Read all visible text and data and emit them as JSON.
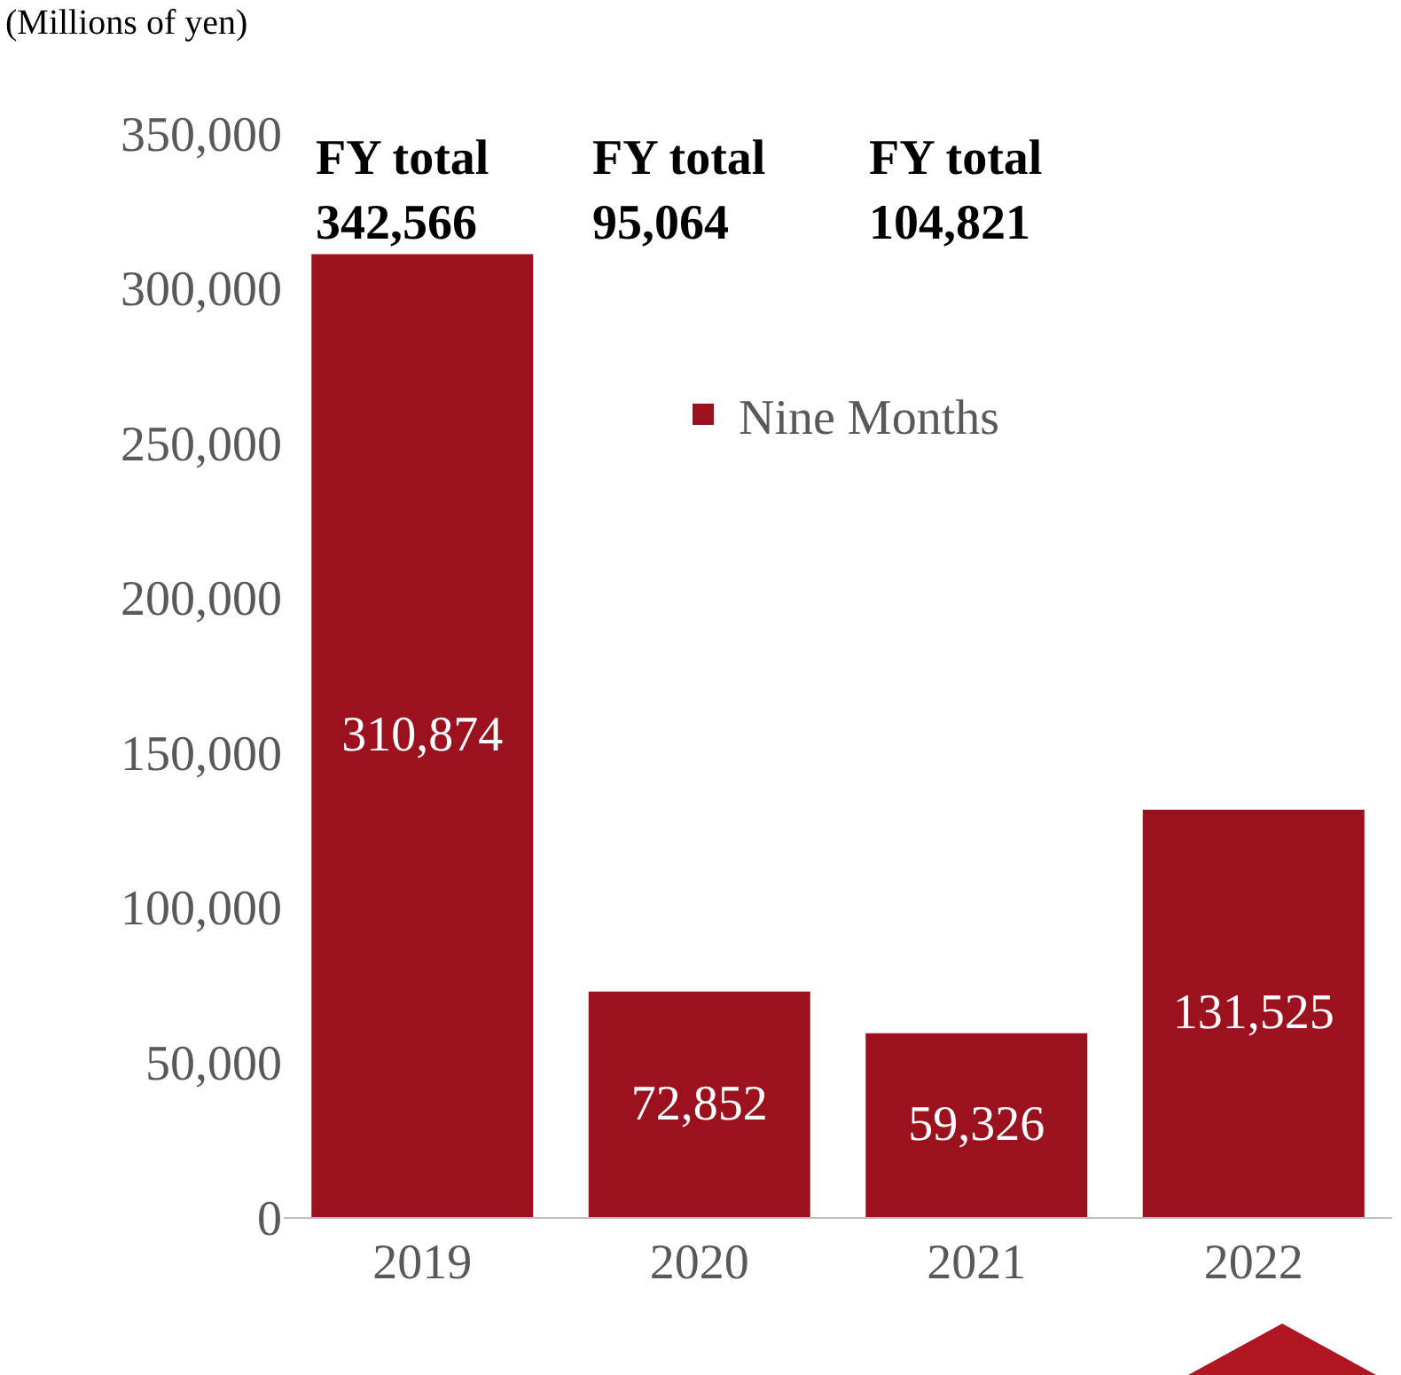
{
  "chart_data": {
    "type": "bar",
    "ylabel": "(Millions of yen)",
    "categories": [
      "2019",
      "2020",
      "2021",
      "2022"
    ],
    "series": [
      {
        "name": "Nine Months",
        "color": "#9b111e",
        "values": [
          310874,
          72852,
          59326,
          131525
        ],
        "value_labels": [
          "310,874",
          "72,852",
          "59,326",
          "131,525"
        ]
      }
    ],
    "ylim": [
      0,
      350000
    ],
    "yticks": [
      {
        "value": 0,
        "label": "0"
      },
      {
        "value": 50000,
        "label": "50,000"
      },
      {
        "value": 100000,
        "label": "100,000"
      },
      {
        "value": 150000,
        "label": "150,000"
      },
      {
        "value": 200000,
        "label": "200,000"
      },
      {
        "value": 250000,
        "label": "250,000"
      },
      {
        "value": 300000,
        "label": "300,000"
      },
      {
        "value": 350000,
        "label": "350,000"
      }
    ],
    "grid": false,
    "legend": "top",
    "annotations": [
      "FY total\n342,566",
      "FY total\n95,064",
      "FY total\n104,821"
    ]
  }
}
